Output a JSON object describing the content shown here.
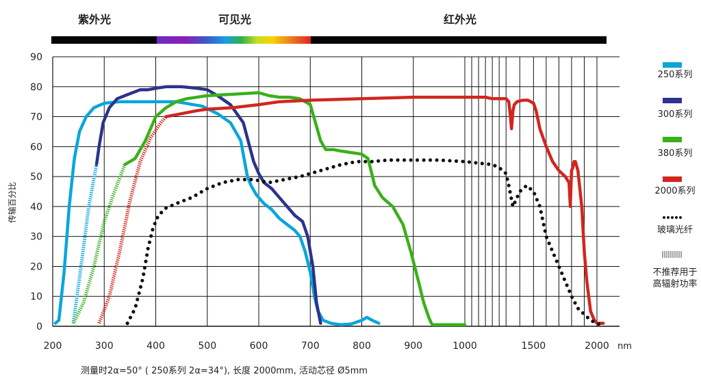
{
  "chart_data": {
    "type": "line",
    "title": "",
    "xlabel": "",
    "ylabel": "传输百分比",
    "x_unit": "nm",
    "ylim": [
      0,
      90
    ],
    "x_ticks": [
      "200",
      "300",
      "400",
      "500",
      "600",
      "700",
      "800",
      "900",
      "1000",
      "1500",
      "2000"
    ],
    "y_ticks": [
      "0",
      "10",
      "20",
      "30",
      "40",
      "50",
      "60",
      "70",
      "80",
      "90"
    ],
    "spectrum_regions": [
      "紫外光",
      "可见光",
      "红外光"
    ],
    "footnote": "测量时2α=50° (   250系列 2α=34°), 长度 2000mm, 活动芯径 Ø5mm",
    "legend": [
      {
        "name": "250系列",
        "color": "#0aa6da",
        "style": "bar"
      },
      {
        "name": "300系列",
        "color": "#2a348c",
        "style": "bar"
      },
      {
        "name": "380系列",
        "color": "#3ab01c",
        "style": "bar"
      },
      {
        "name": "2000系列",
        "color": "#d1261f",
        "style": "bar"
      },
      {
        "name": "玻璃光纤",
        "color": "#111111",
        "style": "dots"
      },
      {
        "name": "不推荐用于\n高辐射功率",
        "color": "#666666",
        "style": "hatch"
      }
    ],
    "series": [
      {
        "name": "250系列",
        "color": "#0aa6da",
        "x": [
          205,
          212,
          222,
          232,
          242,
          252,
          265,
          280,
          300,
          330,
          380,
          440,
          490,
          520,
          545,
          565,
          578,
          585,
          595,
          610,
          625,
          640,
          655,
          670,
          680,
          690,
          700,
          708,
          715,
          725,
          740,
          760,
          780,
          800,
          810,
          820,
          833
        ],
        "y": [
          1,
          2,
          18,
          40,
          56,
          65,
          70,
          73,
          74.5,
          75,
          75,
          75,
          73.5,
          71,
          68,
          62,
          50,
          47,
          44,
          41,
          39,
          36,
          34,
          32,
          30,
          25,
          18,
          10,
          5,
          2,
          1,
          0.5,
          0.8,
          2,
          3,
          2,
          1
        ]
      },
      {
        "name": "300系列",
        "color": "#2a348c",
        "x": [
          285,
          290,
          298,
          310,
          325,
          340,
          355,
          370,
          385,
          400,
          420,
          450,
          480,
          500,
          520,
          545,
          570,
          590,
          600,
          610,
          625,
          640,
          655,
          670,
          685,
          695,
          705,
          712,
          720
        ],
        "y": [
          54,
          60,
          68,
          73,
          76,
          77,
          78,
          79,
          79,
          79.5,
          80,
          80,
          79.5,
          79,
          77,
          74,
          68,
          55,
          51,
          48,
          46,
          43,
          40,
          37,
          35,
          30,
          20,
          8,
          1
        ]
      },
      {
        "name": "380系列",
        "color": "#3ab01c",
        "x": [
          340,
          360,
          380,
          400,
          420,
          440,
          460,
          500,
          550,
          600,
          620,
          640,
          660,
          680,
          700,
          710,
          720,
          730,
          745,
          760,
          780,
          800,
          812,
          818,
          825,
          840,
          860,
          880,
          895,
          910,
          920,
          930,
          935,
          938,
          945,
          960,
          980,
          1000
        ],
        "y": [
          54,
          56,
          62,
          70,
          73,
          75,
          76,
          77,
          77.5,
          78,
          77,
          76.5,
          76.5,
          76,
          74,
          68,
          62,
          59,
          59,
          58.5,
          58,
          57.5,
          56,
          52,
          47,
          43,
          40,
          34,
          25,
          15,
          8,
          3,
          1,
          0.5,
          0.5,
          0.5,
          0.5,
          0.5
        ]
      },
      {
        "name": "2000系列",
        "color": "#d1261f",
        "x": [
          420,
          450,
          480,
          500,
          550,
          600,
          640,
          700,
          800,
          900,
          1000,
          1050,
          1100,
          1150,
          1200,
          1250,
          1300,
          1320,
          1330,
          1340,
          1350,
          1360,
          1380,
          1420,
          1460,
          1500,
          1520,
          1550,
          1600,
          1650,
          1700,
          1750,
          1780,
          1790,
          1800,
          1810,
          1820,
          1830,
          1850,
          1880,
          1900,
          1920,
          1950,
          1980,
          2000,
          2010,
          2050
        ],
        "y": [
          70,
          71,
          72,
          72.5,
          73,
          74,
          75,
          75.5,
          76,
          76.5,
          76.5,
          76.5,
          76.5,
          76.5,
          76,
          76,
          76,
          75,
          71,
          66,
          72,
          74,
          75,
          75.5,
          75.5,
          74.5,
          72,
          66,
          60,
          55,
          52,
          50,
          48,
          40,
          52,
          53,
          55,
          55,
          52,
          40,
          25,
          15,
          5,
          2,
          1,
          1,
          1
        ]
      },
      {
        "name": "玻璃光纤",
        "color": "#111111",
        "x": [
          345,
          360,
          375,
          385,
          395,
          405,
          420,
          440,
          470,
          500,
          530,
          560,
          590,
          620,
          650,
          680,
          700,
          730,
          760,
          790,
          820,
          850,
          900,
          950,
          1000,
          1100,
          1200,
          1250,
          1300,
          1320,
          1350,
          1380,
          1400,
          1450,
          1500,
          1550,
          1600,
          1650,
          1700,
          1750,
          1800,
          1850,
          1900,
          1950,
          2000,
          2030
        ],
        "y": [
          1,
          6,
          16,
          26,
          33,
          37,
          39.5,
          41,
          43,
          46,
          48,
          49,
          49,
          48,
          49,
          50,
          51,
          52.5,
          54,
          55,
          55,
          55.5,
          55.5,
          55.5,
          55,
          54.5,
          54,
          53,
          51,
          47,
          40,
          43,
          45,
          47,
          45,
          40,
          30,
          25,
          20,
          15,
          10,
          6,
          4,
          2,
          1,
          0.5
        ]
      },
      {
        "name": "250系列 (不推荐)",
        "color": "#0aa6da",
        "style": "hatch",
        "x": [
          240,
          255,
          270,
          285
        ],
        "y": [
          1,
          20,
          40,
          54
        ]
      },
      {
        "name": "380系列 (不推荐)",
        "color": "#3ab01c",
        "style": "hatch",
        "x": [
          240,
          260,
          280,
          300,
          320,
          340
        ],
        "y": [
          1,
          8,
          20,
          35,
          45,
          54
        ]
      },
      {
        "name": "2000系列 (不推荐)",
        "color": "#d1261f",
        "style": "hatch",
        "x": [
          290,
          310,
          330,
          350,
          370,
          390,
          410,
          420
        ],
        "y": [
          1,
          10,
          25,
          42,
          55,
          63,
          68,
          70
        ]
      }
    ]
  }
}
